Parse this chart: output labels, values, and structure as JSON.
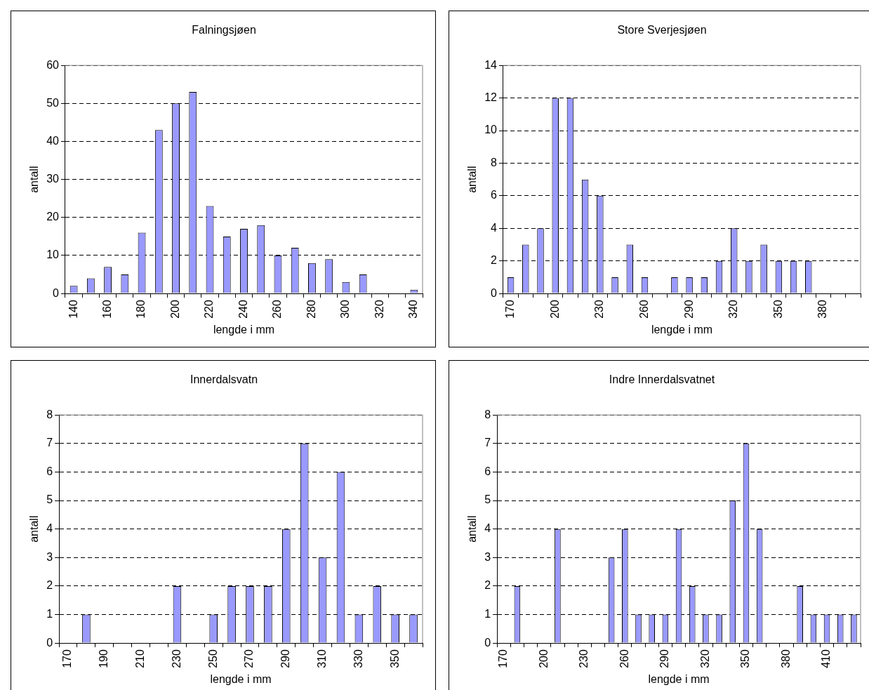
{
  "chart_data": [
    {
      "type": "bar",
      "title": "Falningsjøen",
      "xlabel": "lengde i mm",
      "ylabel": "antall",
      "categories": [
        "140",
        null,
        "160",
        null,
        "180",
        null,
        "200",
        null,
        "220",
        null,
        "240",
        null,
        "260",
        null,
        "280",
        null,
        "300",
        null,
        "320",
        null,
        "340"
      ],
      "values": [
        2,
        4,
        7,
        5,
        16,
        43,
        50,
        53,
        23,
        15,
        17,
        18,
        10,
        12,
        8,
        9,
        3,
        5,
        0,
        0,
        1
      ],
      "color": "#9999ff",
      "ylim": [
        0,
        60
      ],
      "yticks": [
        0,
        10,
        20,
        30,
        40,
        50,
        60
      ],
      "grid": "y"
    },
    {
      "type": "bar",
      "title": "Store Sverjesjøen",
      "xlabel": "lengde i mm",
      "ylabel": "antall",
      "categories": [
        "170",
        null,
        null,
        "200",
        null,
        null,
        "230",
        null,
        null,
        "260",
        null,
        null,
        "290",
        null,
        null,
        "320",
        null,
        null,
        "350",
        null,
        null,
        "380",
        null,
        null
      ],
      "values": [
        1,
        3,
        4,
        12,
        12,
        7,
        6,
        1,
        3,
        1,
        0,
        1,
        1,
        1,
        2,
        4,
        2,
        3,
        2,
        2,
        2,
        0,
        0,
        0
      ],
      "color": "#9999ff",
      "ylim": [
        0,
        14
      ],
      "yticks": [
        0,
        2,
        4,
        6,
        8,
        10,
        12,
        14
      ],
      "grid": "y"
    },
    {
      "type": "bar",
      "title": "Innerdalsvatn",
      "xlabel": "lengde i mm",
      "ylabel": "antall",
      "categories": [
        "170",
        null,
        "190",
        null,
        "210",
        null,
        "230",
        null,
        "250",
        null,
        "270",
        null,
        "290",
        null,
        "310",
        null,
        "330",
        null,
        "350",
        null
      ],
      "values": [
        0,
        1,
        0,
        0,
        0,
        0,
        2,
        0,
        1,
        2,
        2,
        2,
        4,
        7,
        3,
        6,
        1,
        2,
        1,
        1
      ],
      "color": "#9999ff",
      "ylim": [
        0,
        8
      ],
      "yticks": [
        0,
        1,
        2,
        3,
        4,
        5,
        6,
        7,
        8
      ],
      "grid": "y"
    },
    {
      "type": "bar",
      "title": "Indre Innerdalsvatnet",
      "xlabel": "lengde i mm",
      "ylabel": "antall",
      "categories": [
        "170",
        null,
        null,
        "200",
        null,
        null,
        "230",
        null,
        null,
        "260",
        null,
        null,
        "290",
        null,
        null,
        "320",
        null,
        null,
        "350",
        null,
        null,
        "380",
        null,
        null,
        "410",
        null,
        null
      ],
      "values": [
        0,
        2,
        0,
        0,
        4,
        0,
        0,
        0,
        3,
        4,
        1,
        1,
        1,
        4,
        2,
        1,
        1,
        5,
        7,
        4,
        0,
        0,
        2,
        1,
        1,
        1,
        1
      ],
      "color": "#9999ff",
      "ylim": [
        0,
        8
      ],
      "yticks": [
        0,
        1,
        2,
        3,
        4,
        5,
        6,
        7,
        8
      ],
      "grid": "y"
    }
  ]
}
